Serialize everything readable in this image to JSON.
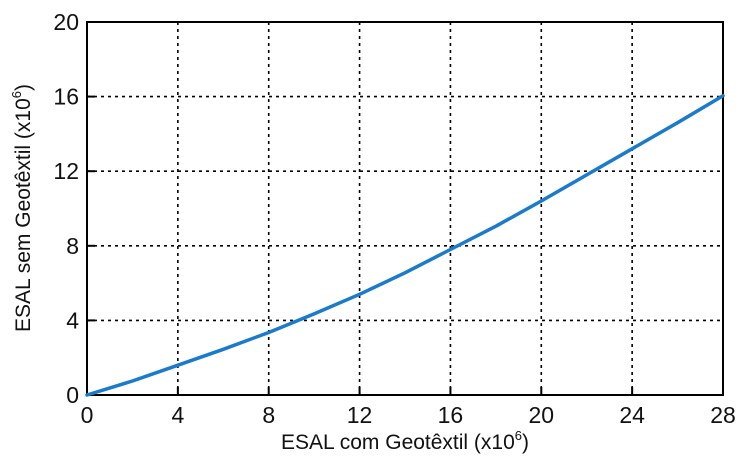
{
  "chart_data": {
    "type": "line",
    "xlabel": {
      "main": "ESAL com Geotêxtil (x10",
      "sup": "6",
      "close": ")"
    },
    "ylabel": {
      "main": "ESAL sem Geotêxtil (x10",
      "sup": "6",
      "close": ")"
    },
    "xlim": [
      0,
      28
    ],
    "ylim": [
      0,
      20
    ],
    "xticks": [
      0,
      4,
      8,
      12,
      16,
      20,
      24,
      28
    ],
    "yticks": [
      0,
      4,
      8,
      12,
      16,
      20
    ],
    "grid": true,
    "line_color": "#1a7acc",
    "series": [
      {
        "x": [
          0,
          2,
          4,
          6,
          8,
          10,
          12,
          14,
          16,
          18,
          20,
          22,
          24,
          26,
          28
        ],
        "y": [
          0,
          0.75,
          1.6,
          2.45,
          3.35,
          4.35,
          5.4,
          6.55,
          7.8,
          9.05,
          10.4,
          11.8,
          13.2,
          14.6,
          16.05
        ]
      }
    ]
  }
}
